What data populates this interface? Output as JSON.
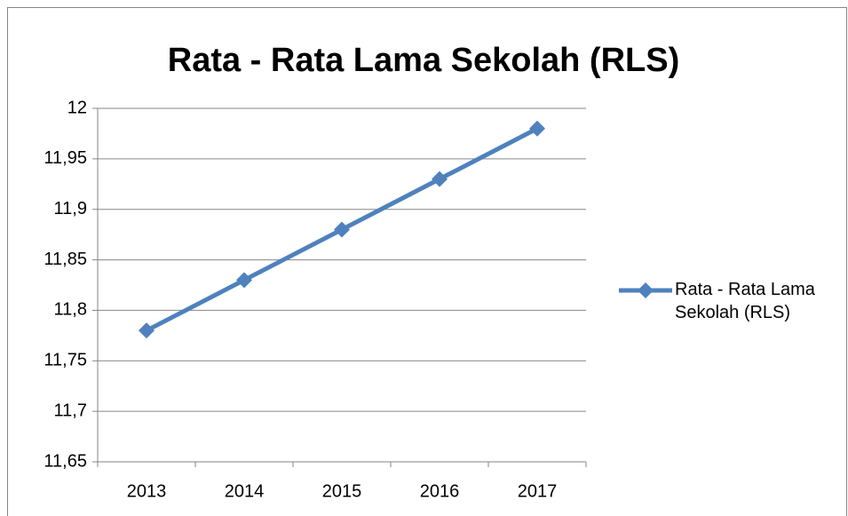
{
  "chart_data": {
    "type": "line",
    "title": "Rata - Rata Lama Sekolah (RLS)",
    "categories": [
      "2013",
      "2014",
      "2015",
      "2016",
      "2017"
    ],
    "series": [
      {
        "name": "Rata - Rata Lama Sekolah (RLS)",
        "color": "#4f81bd",
        "values": [
          11.78,
          11.83,
          11.88,
          11.93,
          11.98
        ]
      }
    ],
    "ylim": [
      11.65,
      12
    ],
    "yticks": [
      {
        "value": 11.65,
        "label": "11,65"
      },
      {
        "value": 11.7,
        "label": "11,7"
      },
      {
        "value": 11.75,
        "label": "11,75"
      },
      {
        "value": 11.8,
        "label": "11,8"
      },
      {
        "value": 11.85,
        "label": "11,85"
      },
      {
        "value": 11.9,
        "label": "11,9"
      },
      {
        "value": 11.95,
        "label": "11,95"
      },
      12
    ],
    "grid": true,
    "legend": "right"
  }
}
